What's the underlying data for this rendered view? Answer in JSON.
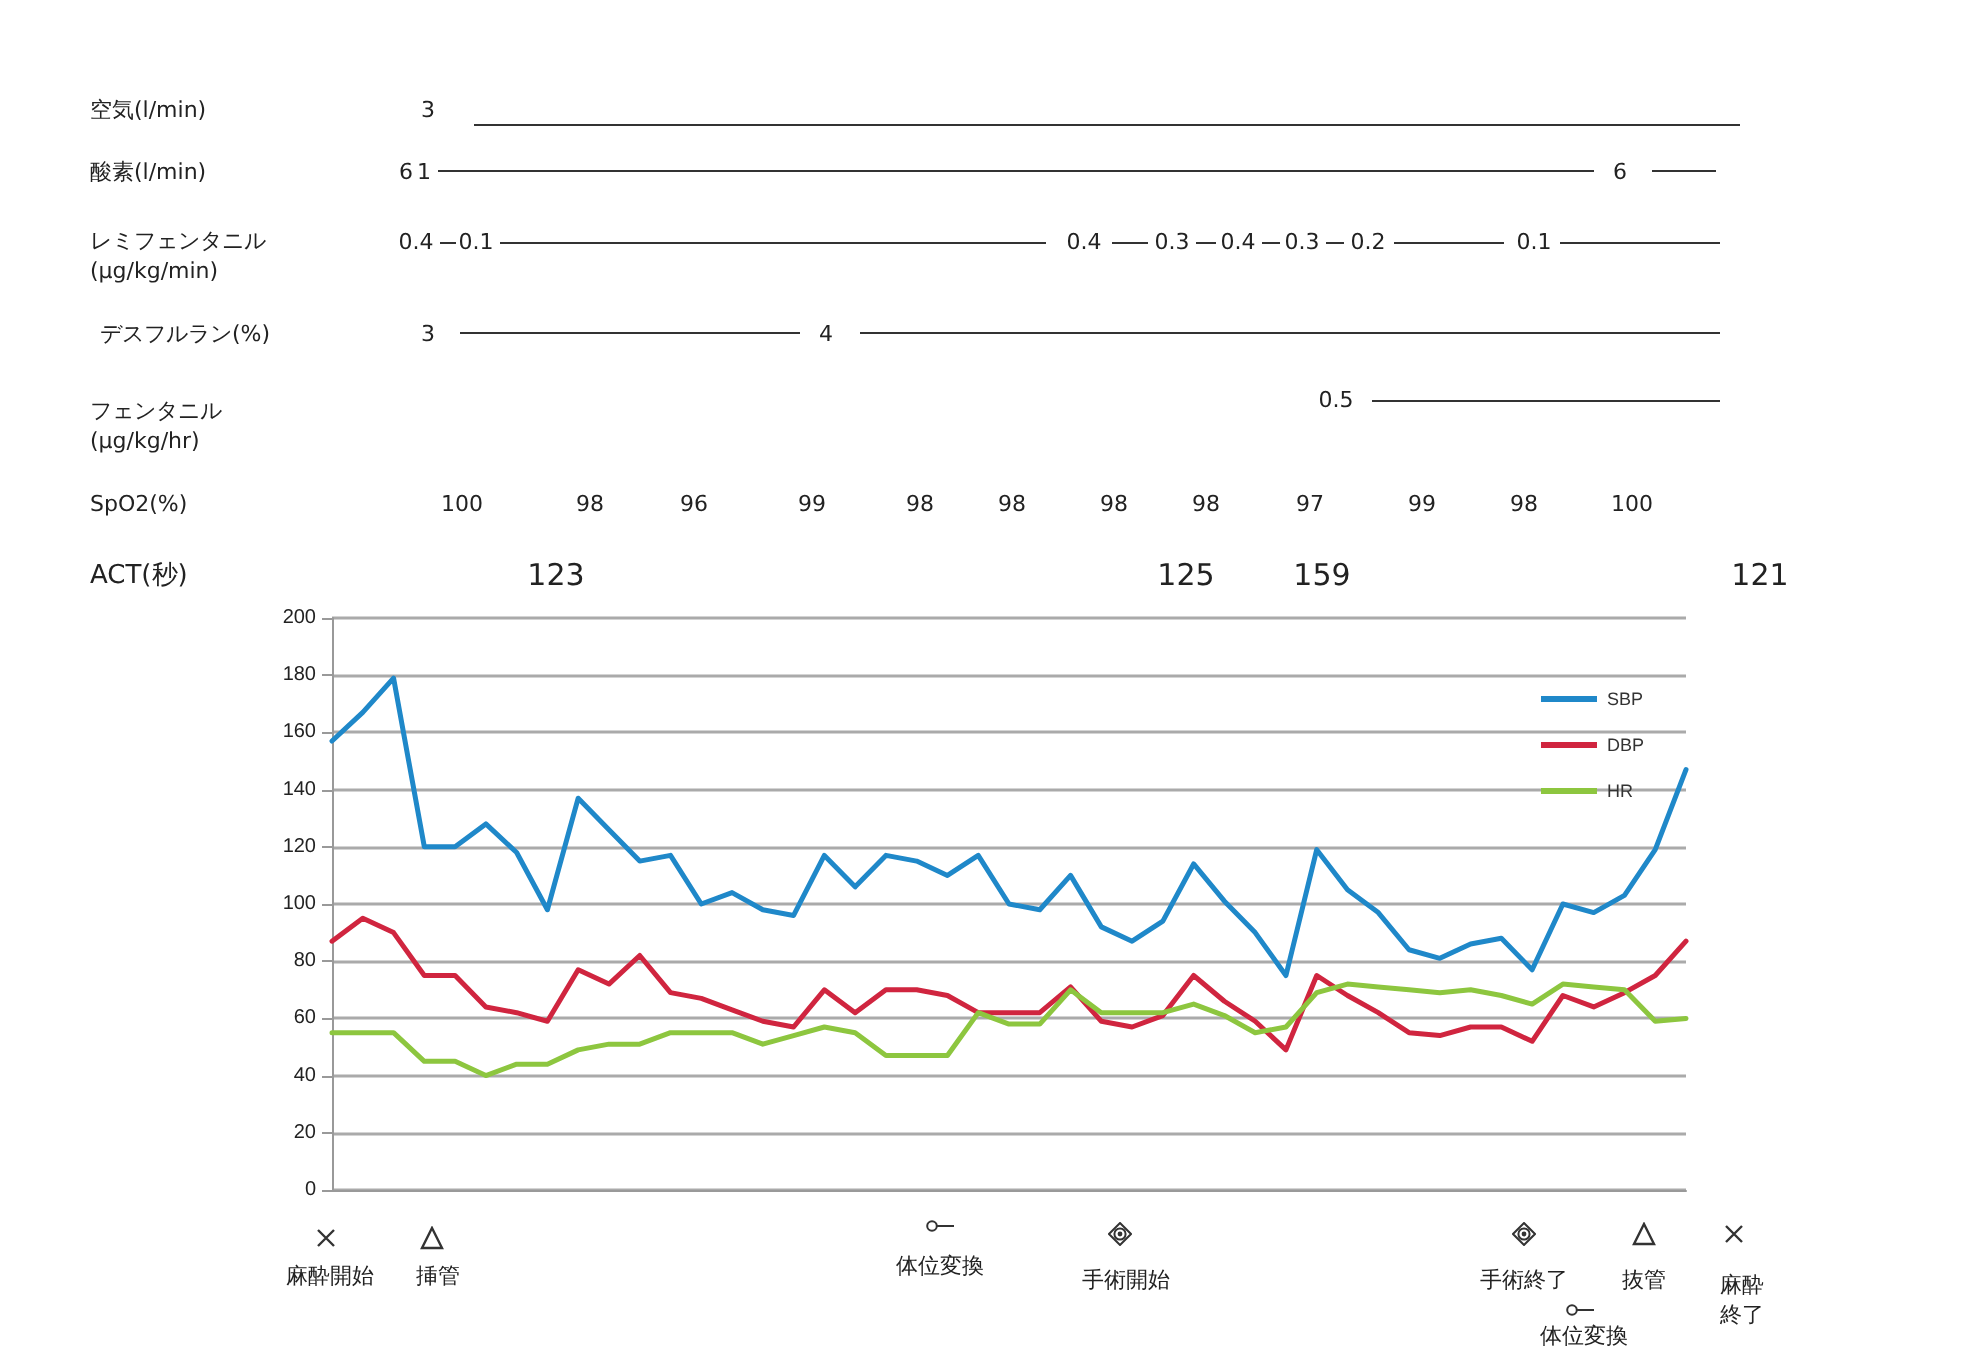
{
  "chart_data": {
    "type": "line",
    "categories": [
      null,
      null,
      null,
      null,
      null,
      null,
      null,
      null,
      null,
      null,
      null,
      null,
      null,
      null,
      null,
      null,
      null,
      null,
      null,
      null,
      null,
      null,
      null,
      null,
      null,
      null,
      null,
      null,
      null,
      null,
      null,
      null,
      null,
      null,
      null,
      null,
      null,
      null,
      null,
      null,
      null,
      null,
      null,
      null,
      null
    ],
    "series": [
      {
        "name": "SBP",
        "color": "#1f88c9",
        "values": [
          157,
          167,
          179,
          120,
          120,
          128,
          118,
          98,
          137,
          126,
          115,
          117,
          100,
          104,
          98,
          96,
          117,
          106,
          117,
          115,
          110,
          117,
          100,
          98,
          110,
          92,
          87,
          94,
          114,
          101,
          90,
          75,
          119,
          105,
          97,
          84,
          81,
          86,
          88,
          77,
          100,
          97,
          103,
          119,
          147
        ]
      },
      {
        "name": "DBP",
        "color": "#d0253f",
        "values": [
          87,
          95,
          90,
          75,
          75,
          64,
          62,
          59,
          77,
          72,
          82,
          69,
          67,
          63,
          59,
          57,
          70,
          62,
          70,
          70,
          68,
          62,
          62,
          62,
          71,
          59,
          57,
          61,
          75,
          66,
          59,
          49,
          75,
          68,
          62,
          55,
          54,
          57,
          57,
          52,
          68,
          64,
          69,
          75,
          87
        ]
      },
      {
        "name": "HR",
        "color": "#8dc63f",
        "values": [
          55,
          55,
          55,
          45,
          45,
          40,
          44,
          44,
          49,
          51,
          51,
          55,
          55,
          55,
          51,
          54,
          57,
          55,
          47,
          47,
          47,
          62,
          58,
          58,
          70,
          62,
          62,
          62,
          65,
          61,
          55,
          57,
          69,
          72,
          71,
          70,
          69,
          70,
          68,
          65,
          72,
          71,
          70,
          59,
          60
        ]
      }
    ],
    "ylim": [
      0,
      200
    ],
    "yticks": [
      0,
      20,
      40,
      60,
      80,
      100,
      120,
      140,
      160,
      180,
      200
    ],
    "grid": "y",
    "legend": "top right",
    "marker": "none",
    "line_style": "solid",
    "annotations": [
      "空気(l/min)",
      "酸素(l/min)",
      "レミフェンタニル\n(μg/kg/min)",
      "デスフルラン(%)",
      "フェンタニル\n(μg/kg/hr)",
      "SpO2(%)",
      "ACT(秒)",
      "3",
      "6",
      "1",
      "6",
      "0.4",
      "0.1",
      "0.4",
      "0.3",
      "0.4",
      "0.3",
      "0.2",
      "0.1",
      "3",
      "4",
      "0.5",
      "100",
      "98",
      "96",
      "99",
      "98",
      "98",
      "98",
      "98",
      "97",
      "99",
      "98",
      "100",
      "123",
      "125",
      "159",
      "121",
      "麻酔開始",
      "挿管",
      "体位変換",
      "手術開始",
      "手術終了",
      "体位変換",
      "抜管",
      "麻酔終了"
    ]
  }
}
